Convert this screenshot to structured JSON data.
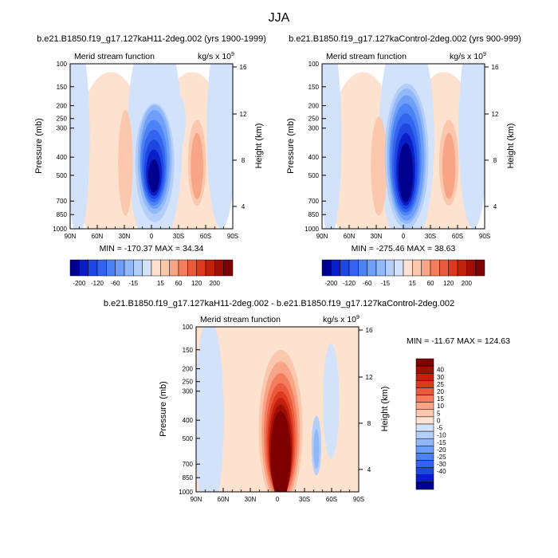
{
  "figure": {
    "main_title": "JJA",
    "units_base": "kg/s x 10",
    "units_exp": "9",
    "panel_label": "Merid stream function"
  },
  "colors": {
    "neg": [
      "#00008f",
      "#0a1ec8",
      "#1e46e1",
      "#3264ef",
      "#4b82f5",
      "#6e9ef7",
      "#91b8f8",
      "#b4cefa",
      "#d2e2fb"
    ],
    "pos": [
      "#fde2d0",
      "#fbc7ad",
      "#f8a486",
      "#f47d5e",
      "#ec5a3e",
      "#dc3a1f",
      "#c3200c",
      "#a00e05",
      "#7f0000"
    ]
  },
  "chart_data": [
    {
      "type": "heatmap",
      "title": "b.e21.B1850.f19_g17.127kaH11-2deg.002 (yrs 1900-1999)",
      "xlabel": "",
      "ylabel": "Pressure (mb)",
      "ylabel_right": "Height (km)",
      "x_ticks": [
        "90N",
        "60N",
        "30N",
        "0",
        "30S",
        "60S",
        "90S"
      ],
      "y_ticks": [
        "100",
        "150",
        "200",
        "250",
        "300",
        "400",
        "500",
        "700",
        "850",
        "1000"
      ],
      "height_ticks": [
        "16",
        "12",
        "8",
        "4"
      ],
      "stats": "MIN = -170.37  MAX = 34.34",
      "min": -170.37,
      "max": 34.34,
      "xlim": [
        -90,
        90
      ],
      "ylim": [
        1000,
        100
      ]
    },
    {
      "type": "heatmap",
      "title": "b.e21.B1850.f19_g17.127kaControl-2deg.002 (yrs 900-999)",
      "xlabel": "",
      "ylabel": "Pressure (mb)",
      "ylabel_right": "Height (km)",
      "x_ticks": [
        "90N",
        "60N",
        "30N",
        "0",
        "30S",
        "60S",
        "90S"
      ],
      "y_ticks": [
        "100",
        "150",
        "200",
        "250",
        "300",
        "400",
        "500",
        "700",
        "850",
        "1000"
      ],
      "height_ticks": [
        "16",
        "12",
        "8",
        "4"
      ],
      "stats": "MIN = -275.46  MAX = 38.63",
      "min": -275.46,
      "max": 38.63,
      "xlim": [
        -90,
        90
      ],
      "ylim": [
        1000,
        100
      ]
    },
    {
      "type": "heatmap",
      "title": "b.e21.B1850.f19_g17.127kaH11-2deg.002 - b.e21.B1850.f19_g17.127kaControl-2deg.002",
      "xlabel": "",
      "ylabel": "Pressure (mb)",
      "ylabel_right": "Height (km)",
      "x_ticks": [
        "90N",
        "60N",
        "30N",
        "0",
        "30S",
        "60S",
        "90S"
      ],
      "y_ticks": [
        "100",
        "150",
        "200",
        "250",
        "300",
        "400",
        "500",
        "700",
        "850",
        "1000"
      ],
      "height_ticks": [
        "16",
        "12",
        "8",
        "4"
      ],
      "stats": "MIN = -11.67  MAX = 124.63",
      "min": -11.67,
      "max": 124.63,
      "xlim": [
        -90,
        90
      ],
      "ylim": [
        1000,
        100
      ]
    }
  ],
  "colorbar_top": {
    "labels": [
      "-200",
      "-120",
      "-60",
      "-15",
      "15",
      "60",
      "120",
      "200"
    ]
  },
  "colorbar_diff": {
    "labels": [
      "40",
      "30",
      "25",
      "20",
      "15",
      "10",
      "5",
      "0",
      "-5",
      "-10",
      "-15",
      "-20",
      "-25",
      "-30",
      "-40"
    ]
  }
}
